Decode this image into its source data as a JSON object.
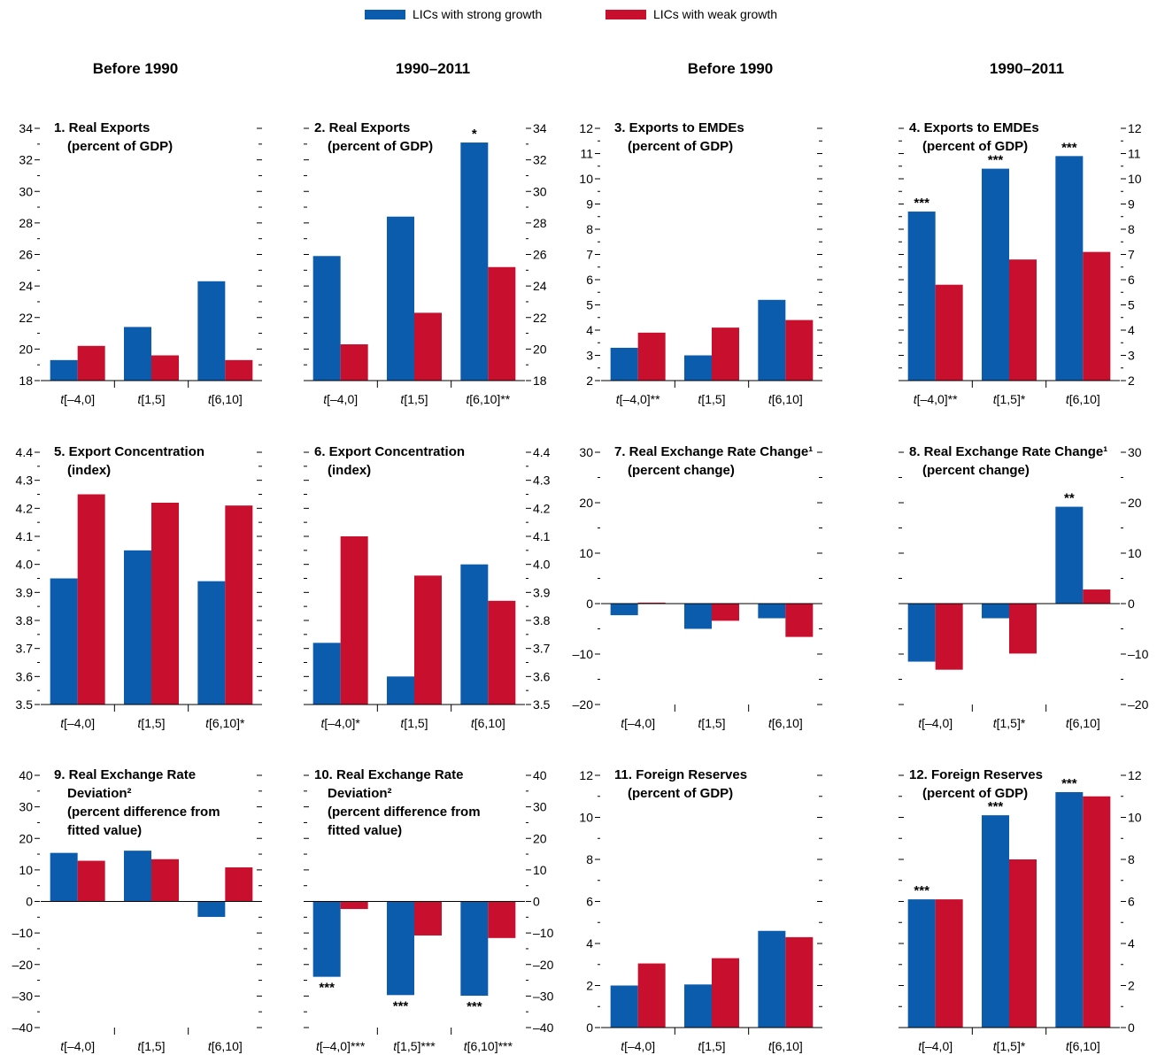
{
  "legend": {
    "strong_label": "LICs with strong growth",
    "weak_label": "LICs with weak growth",
    "strong_color": "#0b5cad",
    "weak_color": "#c8102e"
  },
  "column_headers": [
    "Before 1990",
    "1990–2011",
    "Before 1990",
    "1990–2011"
  ],
  "chart_data": [
    {
      "type": "bar",
      "title_lines": [
        "1. Real Exports",
        "(percent of GDP)"
      ],
      "categories": [
        "t[–4,0]",
        "t[1,5]",
        "t[6,10]"
      ],
      "series": [
        {
          "name": "LICs with strong growth",
          "values": [
            19.3,
            21.4,
            24.3
          ]
        },
        {
          "name": "LICs with weak growth",
          "values": [
            20.2,
            19.6,
            19.3
          ]
        }
      ],
      "ylim": [
        18,
        34
      ],
      "ticks": [
        18,
        20,
        22,
        24,
        26,
        28,
        30,
        32,
        34
      ],
      "axis_side": "left",
      "strong_marks": [
        "",
        "",
        ""
      ],
      "weak_marks": [
        "",
        "",
        ""
      ],
      "category_marks": [
        "",
        "",
        ""
      ]
    },
    {
      "type": "bar",
      "title_lines": [
        "2. Real Exports",
        "(percent of GDP)"
      ],
      "categories": [
        "t[–4,0]",
        "t[1,5]",
        "t[6,10]"
      ],
      "series": [
        {
          "name": "LICs with strong growth",
          "values": [
            25.9,
            28.4,
            33.1
          ]
        },
        {
          "name": "LICs with weak growth",
          "values": [
            20.3,
            22.3,
            25.2
          ]
        }
      ],
      "ylim": [
        18,
        34
      ],
      "ticks": [
        18,
        20,
        22,
        24,
        26,
        28,
        30,
        32,
        34
      ],
      "axis_side": "right",
      "strong_marks": [
        "",
        "",
        "*"
      ],
      "weak_marks": [
        "",
        "",
        ""
      ],
      "category_marks": [
        "",
        "",
        "**"
      ]
    },
    {
      "type": "bar",
      "title_lines": [
        "3. Exports to EMDEs",
        "(percent of GDP)"
      ],
      "categories": [
        "t[–4,0]",
        "t[1,5]",
        "t[6,10]"
      ],
      "series": [
        {
          "name": "LICs with strong growth",
          "values": [
            3.3,
            3.0,
            5.2
          ]
        },
        {
          "name": "LICs with weak growth",
          "values": [
            3.9,
            4.1,
            4.4
          ]
        }
      ],
      "ylim": [
        2,
        12
      ],
      "ticks": [
        2,
        3,
        4,
        5,
        6,
        7,
        8,
        9,
        10,
        11,
        12
      ],
      "axis_side": "left",
      "strong_marks": [
        "",
        "",
        ""
      ],
      "weak_marks": [
        "",
        "",
        ""
      ],
      "category_marks": [
        "**",
        "",
        ""
      ]
    },
    {
      "type": "bar",
      "title_lines": [
        "4. Exports to EMDEs",
        "(percent of GDP)"
      ],
      "categories": [
        "t[–4,0]",
        "t[1,5]",
        "t[6,10]"
      ],
      "series": [
        {
          "name": "LICs with strong growth",
          "values": [
            8.7,
            10.4,
            10.9
          ]
        },
        {
          "name": "LICs with weak growth",
          "values": [
            5.8,
            6.8,
            7.1
          ]
        }
      ],
      "ylim": [
        2,
        12
      ],
      "ticks": [
        2,
        3,
        4,
        5,
        6,
        7,
        8,
        9,
        10,
        11,
        12
      ],
      "axis_side": "right",
      "strong_marks": [
        "***",
        "***",
        "***"
      ],
      "weak_marks": [
        "",
        "",
        ""
      ],
      "category_marks": [
        "**",
        "*",
        ""
      ]
    },
    {
      "type": "bar",
      "title_lines": [
        "5. Export Concentration",
        "(index)"
      ],
      "categories": [
        "t[–4,0]",
        "t[1,5]",
        "t[6,10]"
      ],
      "series": [
        {
          "name": "LICs with strong growth",
          "values": [
            3.95,
            4.05,
            3.94
          ]
        },
        {
          "name": "LICs with weak growth",
          "values": [
            4.25,
            4.22,
            4.21
          ]
        }
      ],
      "ylim": [
        3.5,
        4.4
      ],
      "ticks": [
        3.5,
        3.6,
        3.7,
        3.8,
        3.9,
        4.0,
        4.1,
        4.2,
        4.3,
        4.4
      ],
      "axis_side": "left",
      "strong_marks": [
        "",
        "",
        ""
      ],
      "weak_marks": [
        "",
        "",
        ""
      ],
      "category_marks": [
        "",
        "",
        "*"
      ]
    },
    {
      "type": "bar",
      "title_lines": [
        "6. Export Concentration",
        "(index)"
      ],
      "categories": [
        "t[–4,0]",
        "t[1,5]",
        "t[6,10]"
      ],
      "series": [
        {
          "name": "LICs with strong growth",
          "values": [
            3.72,
            3.6,
            4.0
          ]
        },
        {
          "name": "LICs with weak growth",
          "values": [
            4.1,
            3.96,
            3.87
          ]
        }
      ],
      "ylim": [
        3.5,
        4.4
      ],
      "ticks": [
        3.5,
        3.6,
        3.7,
        3.8,
        3.9,
        4.0,
        4.1,
        4.2,
        4.3,
        4.4
      ],
      "axis_side": "right",
      "strong_marks": [
        "",
        "",
        ""
      ],
      "weak_marks": [
        "",
        "",
        ""
      ],
      "category_marks": [
        "*",
        "",
        ""
      ]
    },
    {
      "type": "bar",
      "title_lines": [
        "7. Real Exchange Rate Change¹",
        "(percent change)"
      ],
      "categories": [
        "t[–4,0]",
        "t[1,5]",
        "t[6,10]"
      ],
      "series": [
        {
          "name": "LICs with strong growth",
          "values": [
            -2.3,
            -5.0,
            -2.9
          ]
        },
        {
          "name": "LICs with weak growth",
          "values": [
            0.2,
            -3.4,
            -6.6
          ]
        }
      ],
      "ylim": [
        -20,
        30
      ],
      "ticks": [
        -20,
        -10,
        0,
        10,
        20,
        30
      ],
      "axis_side": "left",
      "strong_marks": [
        "",
        "",
        ""
      ],
      "weak_marks": [
        "",
        "",
        ""
      ],
      "category_marks": [
        "",
        "",
        ""
      ]
    },
    {
      "type": "bar",
      "title_lines": [
        "8. Real Exchange Rate Change¹",
        "(percent change)"
      ],
      "categories": [
        "t[–4,0]",
        "t[1,5]",
        "t[6,10]"
      ],
      "series": [
        {
          "name": "LICs with strong growth",
          "values": [
            -11.5,
            -2.9,
            19.2
          ]
        },
        {
          "name": "LICs with weak growth",
          "values": [
            -13.1,
            -9.9,
            2.8
          ]
        }
      ],
      "ylim": [
        -20,
        30
      ],
      "ticks": [
        -20,
        -10,
        0,
        10,
        20,
        30
      ],
      "axis_side": "right",
      "strong_marks": [
        "",
        "",
        "**"
      ],
      "weak_marks": [
        "",
        "",
        ""
      ],
      "category_marks": [
        "",
        "*",
        ""
      ]
    },
    {
      "type": "bar",
      "title_lines": [
        "9. Real Exchange Rate",
        "Deviation²",
        "(percent difference from",
        "fitted value)"
      ],
      "categories": [
        "t[–4,0]",
        "t[1,5]",
        "t[6,10]"
      ],
      "series": [
        {
          "name": "LICs with strong growth",
          "values": [
            15.4,
            16.1,
            -4.9
          ]
        },
        {
          "name": "LICs with weak growth",
          "values": [
            12.9,
            13.4,
            10.8
          ]
        }
      ],
      "ylim": [
        -40,
        40
      ],
      "ticks": [
        -40,
        -30,
        -20,
        -10,
        0,
        10,
        20,
        30,
        40
      ],
      "axis_side": "left",
      "strong_marks": [
        "",
        "",
        ""
      ],
      "weak_marks": [
        "",
        "",
        ""
      ],
      "category_marks": [
        "",
        "",
        ""
      ]
    },
    {
      "type": "bar",
      "title_lines": [
        "10. Real Exchange Rate",
        "Deviation²",
        "(percent difference from",
        "fitted value)"
      ],
      "categories": [
        "t[–4,0]",
        "t[1,5]",
        "t[6,10]"
      ],
      "series": [
        {
          "name": "LICs with strong growth",
          "values": [
            -23.9,
            -29.7,
            -29.9
          ]
        },
        {
          "name": "LICs with weak growth",
          "values": [
            -2.4,
            -10.8,
            -11.6
          ]
        }
      ],
      "ylim": [
        -40,
        40
      ],
      "ticks": [
        -40,
        -30,
        -20,
        -10,
        0,
        10,
        20,
        30,
        40
      ],
      "axis_side": "right",
      "strong_marks": [
        "***",
        "***",
        "***"
      ],
      "weak_marks": [
        "",
        "",
        ""
      ],
      "category_marks": [
        "***",
        "***",
        "***"
      ]
    },
    {
      "type": "bar",
      "title_lines": [
        "11. Foreign Reserves",
        "(percent of GDP)"
      ],
      "categories": [
        "t[–4,0]",
        "t[1,5]",
        "t[6,10]"
      ],
      "series": [
        {
          "name": "LICs with strong growth",
          "values": [
            2.0,
            2.05,
            4.6
          ]
        },
        {
          "name": "LICs with weak growth",
          "values": [
            3.05,
            3.3,
            4.3
          ]
        }
      ],
      "ylim": [
        0,
        12
      ],
      "ticks": [
        0,
        2,
        4,
        6,
        8,
        10,
        12
      ],
      "axis_side": "left",
      "strong_marks": [
        "",
        "",
        ""
      ],
      "weak_marks": [
        "",
        "",
        ""
      ],
      "category_marks": [
        "",
        "",
        ""
      ]
    },
    {
      "type": "bar",
      "title_lines": [
        "12. Foreign Reserves",
        "(percent of GDP)"
      ],
      "categories": [
        "t[–4,0]",
        "t[1,5]",
        "t[6,10]"
      ],
      "series": [
        {
          "name": "LICs with strong growth",
          "values": [
            6.1,
            10.1,
            11.2
          ]
        },
        {
          "name": "LICs with weak growth",
          "values": [
            6.1,
            8.0,
            11.0
          ]
        }
      ],
      "ylim": [
        0,
        12
      ],
      "ticks": [
        0,
        2,
        4,
        6,
        8,
        10,
        12
      ],
      "axis_side": "right",
      "strong_marks": [
        "***",
        "***",
        "***"
      ],
      "weak_marks": [
        "",
        "",
        ""
      ],
      "category_marks": [
        "",
        "*",
        ""
      ]
    }
  ]
}
